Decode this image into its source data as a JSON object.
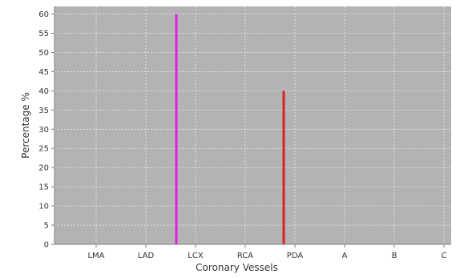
{
  "chart_data": {
    "type": "bar",
    "title": "",
    "xlabel": "Coronary Vessels",
    "ylabel": "Percentage %",
    "categories": [
      "LMA",
      "LAD",
      "LCX",
      "RCA",
      "PDA",
      "A",
      "B",
      "C"
    ],
    "series": [
      {
        "values": [
          0,
          60,
          0,
          40,
          0,
          0,
          0,
          0
        ]
      }
    ],
    "ylim": [
      0,
      62
    ],
    "yticks": [
      0,
      5,
      10,
      15,
      20,
      25,
      30,
      35,
      40,
      45,
      50,
      55,
      60
    ],
    "grid": true,
    "legend": "none",
    "colors": {
      "plot_background": "#b3b3b3",
      "grid": "#e6e6e6",
      "axis": "#808080",
      "bar_LAD": "#e020e0",
      "bar_RCA": "#e02020"
    }
  }
}
